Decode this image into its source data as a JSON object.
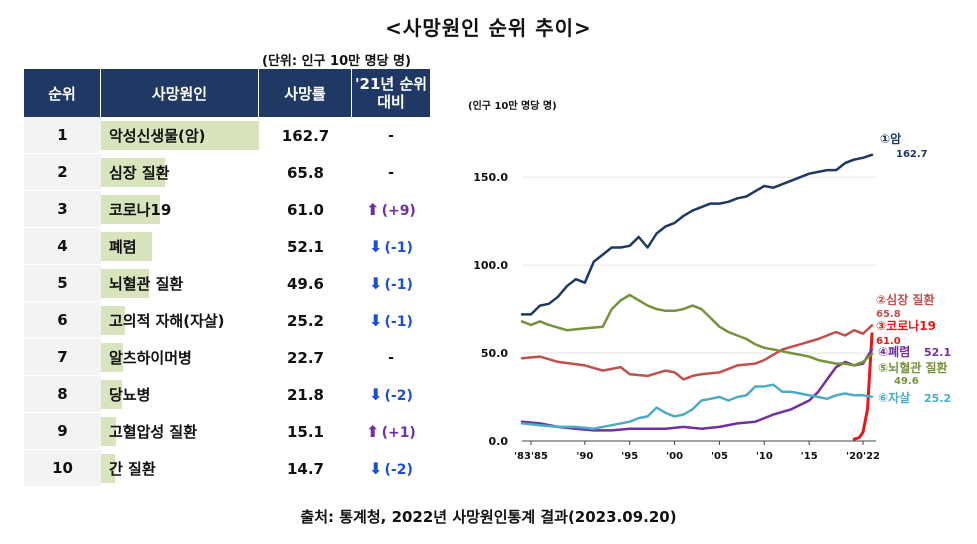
{
  "title": "<사망원인 순위 추이>",
  "unit_note": "(단위: 인구 10만 명당 명)",
  "source": "출처: 통계청, 2022년 사망원인통계 결과(2023.09.20)",
  "table": {
    "headers": [
      "순위",
      "사망원인",
      "사망률",
      "'21년 순위 대비"
    ],
    "rows": [
      {
        "rank": "1",
        "cause": "악성신생물(암)",
        "rate": "162.7",
        "change_dir": "none",
        "change": "-",
        "bar": 1.0
      },
      {
        "rank": "2",
        "cause": "심장 질환",
        "rate": "65.8",
        "change_dir": "none",
        "change": "-",
        "bar": 0.405
      },
      {
        "rank": "3",
        "cause": "코로나19",
        "rate": "61.0",
        "change_dir": "up",
        "change": "(+9)",
        "bar": 0.375
      },
      {
        "rank": "4",
        "cause": "폐렴",
        "rate": "52.1",
        "change_dir": "down",
        "change": "(-1)",
        "bar": 0.32
      },
      {
        "rank": "5",
        "cause": "뇌혈관 질환",
        "rate": "49.6",
        "change_dir": "down",
        "change": "(-1)",
        "bar": 0.305
      },
      {
        "rank": "6",
        "cause": "고의적 자해(자살)",
        "rate": "25.2",
        "change_dir": "down",
        "change": "(-1)",
        "bar": 0.155
      },
      {
        "rank": "7",
        "cause": "알츠하이머병",
        "rate": "22.7",
        "change_dir": "none",
        "change": "-",
        "bar": 0.14
      },
      {
        "rank": "8",
        "cause": "당뇨병",
        "rate": "21.8",
        "change_dir": "down",
        "change": "(-2)",
        "bar": 0.134
      },
      {
        "rank": "9",
        "cause": "고혈압성 질환",
        "rate": "15.1",
        "change_dir": "up",
        "change": "(+1)",
        "bar": 0.093
      },
      {
        "rank": "10",
        "cause": "간 질환",
        "rate": "14.7",
        "change_dir": "down",
        "change": "(-2)",
        "bar": 0.09
      }
    ]
  },
  "chart_data": {
    "type": "line",
    "ylabel": "(인구 10만 명당 명)",
    "ylim": [
      0,
      170
    ],
    "xlim": [
      1983,
      2022
    ],
    "yticks": [
      "0.0",
      "50.0",
      "100.0",
      "150.0"
    ],
    "ytick_values": [
      0,
      50,
      100,
      150
    ],
    "xticks": [
      "'83'85",
      "'90",
      "'95",
      "'00",
      "'05",
      "'10",
      "'15",
      "'20'22"
    ],
    "xtick_values": [
      1984,
      1990,
      1995,
      2000,
      2005,
      2010,
      2015,
      2021
    ],
    "series": [
      {
        "name": "①암",
        "end_label": "162.7",
        "color": "#1f3864",
        "x": [
          1983,
          1984,
          1985,
          1986,
          1987,
          1988,
          1989,
          1990,
          1991,
          1992,
          1993,
          1994,
          1995,
          1996,
          1997,
          1998,
          1999,
          2000,
          2001,
          2002,
          2003,
          2004,
          2005,
          2006,
          2007,
          2008,
          2009,
          2010,
          2011,
          2012,
          2013,
          2014,
          2015,
          2016,
          2017,
          2018,
          2019,
          2020,
          2021,
          2022
        ],
        "y": [
          72,
          72,
          77,
          78,
          82,
          88,
          92,
          90,
          102,
          106,
          110,
          110,
          111,
          116,
          110,
          118,
          122,
          124,
          128,
          131,
          133,
          135,
          135,
          136,
          138,
          139,
          142,
          145,
          144,
          146,
          148,
          150,
          152,
          153,
          154,
          154,
          158,
          160,
          161,
          162.7
        ]
      },
      {
        "name": "②심장 질환",
        "end_label": "65.8",
        "color": "#c0504d",
        "x": [
          1983,
          1985,
          1987,
          1990,
          1992,
          1994,
          1995,
          1997,
          1999,
          2000,
          2001,
          2002,
          2003,
          2005,
          2007,
          2009,
          2010,
          2012,
          2014,
          2016,
          2017,
          2018,
          2019,
          2020,
          2021,
          2022
        ],
        "y": [
          47,
          48,
          45,
          43,
          40,
          42,
          38,
          37,
          40,
          39,
          35,
          37,
          38,
          39,
          43,
          44,
          46,
          52,
          55,
          58,
          60,
          62,
          60,
          63,
          61,
          65.8
        ]
      },
      {
        "name": "③코로나19",
        "end_label": "61.0",
        "color": "#e8171c",
        "x": [
          2020,
          2020.6,
          2021,
          2021.5,
          2022
        ],
        "y": [
          1,
          2,
          5,
          18,
          61.0
        ]
      },
      {
        "name": "④폐렴",
        "end_label": "52.1",
        "color": "#7030a0",
        "x": [
          1983,
          1985,
          1987,
          1989,
          1991,
          1993,
          1995,
          1997,
          1999,
          2001,
          2003,
          2005,
          2007,
          2009,
          2011,
          2013,
          2015,
          2016,
          2017,
          2018,
          2019,
          2020,
          2021,
          2022
        ],
        "y": [
          11,
          10,
          8,
          7,
          6,
          6,
          7,
          7,
          7,
          8,
          7,
          8,
          10,
          11,
          15,
          18,
          23,
          28,
          35,
          42,
          45,
          43,
          44,
          52.1
        ]
      },
      {
        "name": "⑤뇌혈관 질환",
        "end_label": "49.6",
        "color": "#76923c",
        "x": [
          1983,
          1984,
          1985,
          1986,
          1988,
          1990,
          1992,
          1993,
          1994,
          1995,
          1996,
          1997,
          1998,
          1999,
          2000,
          2001,
          2002,
          2003,
          2004,
          2005,
          2006,
          2007,
          2008,
          2009,
          2010,
          2011,
          2012,
          2013,
          2014,
          2015,
          2016,
          2017,
          2018,
          2019,
          2020,
          2021,
          2022
        ],
        "y": [
          68,
          66,
          68,
          66,
          63,
          64,
          65,
          75,
          80,
          83,
          80,
          77,
          75,
          74,
          74,
          75,
          77,
          75,
          70,
          65,
          62,
          60,
          58,
          55,
          53,
          52,
          51,
          50,
          49,
          48,
          46,
          45,
          44,
          44,
          43,
          45,
          49.6
        ]
      },
      {
        "name": "⑥자살",
        "end_label": "25.2",
        "color": "#4bacc6",
        "x": [
          1983,
          1985,
          1987,
          1989,
          1991,
          1993,
          1995,
          1996,
          1997,
          1998,
          1999,
          2000,
          2001,
          2002,
          2003,
          2004,
          2005,
          2006,
          2007,
          2008,
          2009,
          2010,
          2011,
          2012,
          2013,
          2014,
          2015,
          2016,
          2017,
          2018,
          2019,
          2020,
          2021,
          2022
        ],
        "y": [
          10,
          9,
          8,
          8,
          7,
          9,
          11,
          13,
          14,
          19,
          16,
          14,
          15,
          18,
          23,
          24,
          25,
          23,
          25,
          26,
          31,
          31,
          32,
          28,
          28,
          27,
          26,
          25,
          24,
          26,
          27,
          26,
          26,
          25.2
        ]
      }
    ]
  }
}
